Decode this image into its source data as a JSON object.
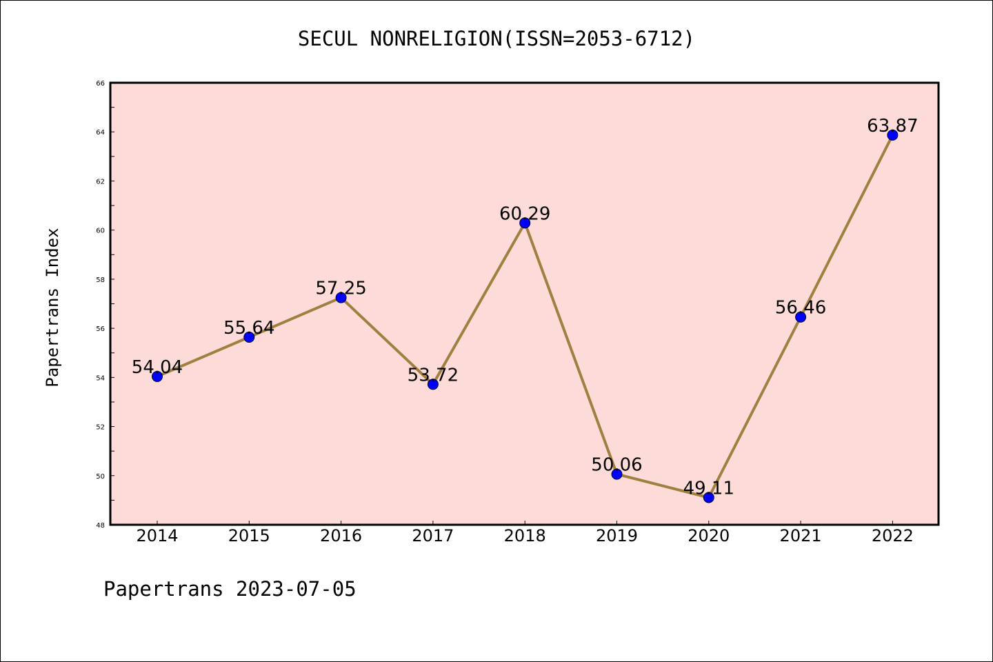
{
  "chart_data": {
    "type": "line",
    "title": "SECUL NONRELIGION(ISSN=2053-6712)",
    "xlabel": "",
    "ylabel": "Papertrans Index",
    "x": [
      "2014",
      "2015",
      "2016",
      "2017",
      "2018",
      "2019",
      "2020",
      "2021",
      "2022"
    ],
    "values": [
      54.04,
      55.64,
      57.25,
      53.72,
      60.29,
      50.06,
      49.11,
      56.46,
      63.87
    ],
    "data_labels": [
      "54.04",
      "55.64",
      "57.25",
      "53.72",
      "60.29",
      "50.06",
      "49.11",
      "56.46",
      "63.87"
    ],
    "ylim": [
      48,
      66
    ],
    "yticks": [
      "48",
      "50",
      "52",
      "54",
      "56",
      "58",
      "60",
      "62",
      "64",
      "66"
    ],
    "grid": false,
    "legend": "none",
    "colors": {
      "plot_background": "#fddbd8",
      "line": "#a08040",
      "marker": "#0000ff"
    }
  },
  "footer": {
    "text": "Papertrans 2023-07-05"
  }
}
